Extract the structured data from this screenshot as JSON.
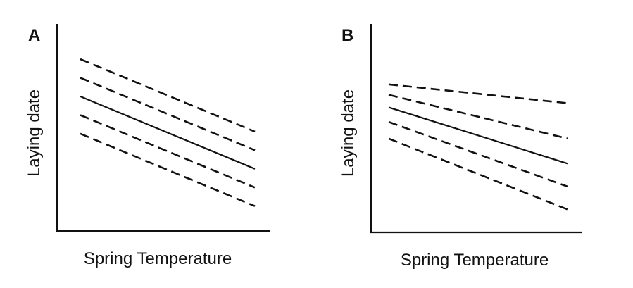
{
  "panels": [
    {
      "letter": "A",
      "xlabel": "Spring Temperature",
      "ylabel": "Laying date",
      "lines": [
        {
          "style": "dashed",
          "y_start": 0.83,
          "y_end": 0.48
        },
        {
          "style": "dashed",
          "y_start": 0.74,
          "y_end": 0.39
        },
        {
          "style": "solid",
          "y_start": 0.65,
          "y_end": 0.3
        },
        {
          "style": "dashed",
          "y_start": 0.56,
          "y_end": 0.21
        },
        {
          "style": "dashed",
          "y_start": 0.47,
          "y_end": 0.12
        }
      ]
    },
    {
      "letter": "B",
      "xlabel": "Spring Temperature",
      "ylabel": "Laying date",
      "lines": [
        {
          "style": "dashed",
          "y_start": 0.71,
          "y_end": 0.62
        },
        {
          "style": "dashed",
          "y_start": 0.66,
          "y_end": 0.45
        },
        {
          "style": "solid",
          "y_start": 0.6,
          "y_end": 0.33
        },
        {
          "style": "dashed",
          "y_start": 0.53,
          "y_end": 0.22
        },
        {
          "style": "dashed",
          "y_start": 0.45,
          "y_end": 0.11
        }
      ]
    }
  ],
  "colors": {
    "ink": "#111111"
  }
}
